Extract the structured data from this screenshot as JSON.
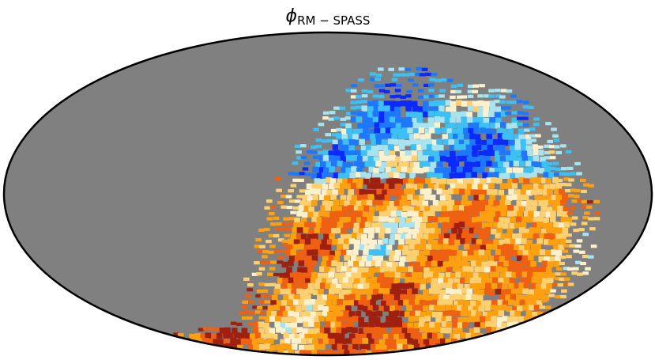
{
  "title": {
    "symbol": "ϕ",
    "subscript": "RM − SPASS"
  }
}
